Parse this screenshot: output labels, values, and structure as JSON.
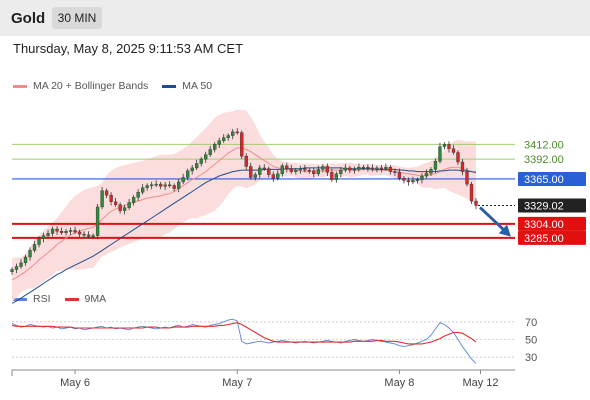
{
  "header": {
    "symbol": "Gold",
    "timeframe": "30 MIN"
  },
  "datetime": "Thursday, May 8, 2025 9:11:53 AM CET",
  "legend": [
    {
      "label": "MA 20 + Bollinger Bands",
      "color": "#f08c8c"
    },
    {
      "label": "MA 50",
      "color": "#1f4e8c"
    }
  ],
  "rsi_legend": [
    {
      "label": "RSI",
      "color": "#5b86d6"
    },
    {
      "label": "9MA",
      "color": "#e03030"
    }
  ],
  "chart_data": [
    {
      "type": "candlestick",
      "title": "",
      "ylim": [
        3225,
        3475
      ],
      "levels": [
        {
          "value": 3412.0,
          "label": "3412.00",
          "kind": "resistance",
          "color": "#9fce6e"
        },
        {
          "value": 3392.0,
          "label": "3392.00",
          "kind": "resistance",
          "color": "#9fce6e"
        },
        {
          "value": 3365.0,
          "label": "3365.00",
          "kind": "pivot",
          "color": "#2a5fd8"
        },
        {
          "value": 3329.02,
          "label": "3329.02",
          "kind": "last-price",
          "color": "#222222"
        },
        {
          "value": 3304.0,
          "label": "3304.00",
          "kind": "support",
          "color": "#e01010"
        },
        {
          "value": 3285.0,
          "label": "3285.00",
          "kind": "support",
          "color": "#e01010"
        }
      ],
      "forecast_arrow": {
        "from": 3329,
        "to": 3285,
        "color": "#2a5fa8"
      },
      "close": [
        3242,
        3246,
        3251,
        3259,
        3268,
        3276,
        3284,
        3288,
        3291,
        3297,
        3294,
        3292,
        3294,
        3295,
        3293,
        3290,
        3289,
        3287,
        3288,
        3327,
        3349,
        3343,
        3334,
        3330,
        3322,
        3326,
        3333,
        3340,
        3347,
        3353,
        3356,
        3357,
        3358,
        3355,
        3357,
        3356,
        3352,
        3361,
        3367,
        3376,
        3380,
        3386,
        3392,
        3398,
        3405,
        3412,
        3417,
        3421,
        3424,
        3429,
        3428,
        3396,
        3382,
        3367,
        3371,
        3380,
        3379,
        3371,
        3366,
        3372,
        3383,
        3379,
        3375,
        3377,
        3379,
        3377,
        3376,
        3372,
        3378,
        3382,
        3374,
        3364,
        3372,
        3377,
        3380,
        3377,
        3378,
        3381,
        3381,
        3380,
        3378,
        3380,
        3379,
        3381,
        3375,
        3374,
        3366,
        3363,
        3361,
        3363,
        3364,
        3369,
        3373,
        3378,
        3389,
        3409,
        3412,
        3406,
        3401,
        3388,
        3375,
        3358,
        3335,
        3329
      ],
      "ma20": [
        3228,
        3231,
        3235,
        3239,
        3244,
        3249,
        3255,
        3260,
        3265,
        3270,
        3276,
        3280,
        3285,
        3289,
        3292,
        3294,
        3296,
        3298,
        3299,
        3304,
        3310,
        3316,
        3321,
        3324,
        3327,
        3329,
        3331,
        3333,
        3335,
        3337,
        3339,
        3340,
        3341,
        3342,
        3344,
        3345,
        3348,
        3352,
        3356,
        3360,
        3364,
        3367,
        3371,
        3375,
        3380,
        3385,
        3390,
        3395,
        3400,
        3404,
        3407,
        3407,
        3405,
        3402,
        3398,
        3394,
        3390,
        3386,
        3382,
        3380,
        3379,
        3378,
        3378,
        3377,
        3376,
        3375,
        3375,
        3376,
        3376,
        3376,
        3377,
        3377,
        3377,
        3377,
        3378,
        3377,
        3377,
        3377,
        3378,
        3378,
        3377,
        3377,
        3377,
        3377,
        3376,
        3375,
        3374,
        3373,
        3372,
        3371,
        3370,
        3369,
        3370,
        3371,
        3372,
        3375,
        3378,
        3380,
        3381,
        3381,
        3379,
        3377,
        3375,
        3373
      ],
      "ma50": [
        3196,
        3199,
        3203,
        3207,
        3211,
        3215,
        3219,
        3223,
        3227,
        3231,
        3235,
        3238,
        3242,
        3245,
        3248,
        3251,
        3254,
        3257,
        3260,
        3264,
        3268,
        3272,
        3276,
        3280,
        3284,
        3288,
        3292,
        3296,
        3300,
        3304,
        3308,
        3312,
        3316,
        3320,
        3324,
        3328,
        3332,
        3336,
        3340,
        3344,
        3348,
        3352,
        3356,
        3360,
        3363,
        3366,
        3369,
        3371,
        3373,
        3375,
        3376,
        3377,
        3377,
        3377,
        3377,
        3377,
        3378,
        3378,
        3378,
        3378,
        3378,
        3379,
        3379,
        3379,
        3379,
        3380,
        3380,
        3380,
        3380,
        3380,
        3380,
        3380,
        3380,
        3380,
        3379,
        3379,
        3379,
        3379,
        3379,
        3379,
        3379,
        3378,
        3378,
        3378,
        3378,
        3378,
        3377,
        3377,
        3376,
        3376,
        3375,
        3375,
        3375,
        3375,
        3375,
        3376,
        3376,
        3377,
        3377,
        3377,
        3376,
        3376,
        3375,
        3374
      ],
      "bb_upper": [
        3258,
        3258,
        3259,
        3263,
        3272,
        3281,
        3289,
        3295,
        3300,
        3306,
        3312,
        3320,
        3328,
        3336,
        3342,
        3346,
        3350,
        3352,
        3354,
        3356,
        3360,
        3370,
        3376,
        3380,
        3382,
        3384,
        3385,
        3387,
        3388,
        3390,
        3392,
        3394,
        3396,
        3398,
        3398,
        3398,
        3399,
        3402,
        3406,
        3410,
        3416,
        3422,
        3428,
        3434,
        3441,
        3448,
        3452,
        3455,
        3456,
        3457,
        3459,
        3459,
        3458,
        3449,
        3439,
        3425,
        3416,
        3408,
        3398,
        3392,
        3389,
        3388,
        3387,
        3387,
        3386,
        3386,
        3386,
        3385,
        3385,
        3385,
        3385,
        3386,
        3386,
        3386,
        3387,
        3387,
        3386,
        3385,
        3385,
        3385,
        3385,
        3384,
        3384,
        3384,
        3384,
        3384,
        3382,
        3381,
        3380,
        3381,
        3382,
        3385,
        3387,
        3389,
        3393,
        3398,
        3403,
        3411,
        3416,
        3418,
        3417,
        3416,
        3416,
        3416
      ],
      "bb_lower": [
        3198,
        3204,
        3211,
        3215,
        3216,
        3217,
        3221,
        3225,
        3230,
        3234,
        3240,
        3240,
        3242,
        3242,
        3242,
        3242,
        3242,
        3244,
        3244,
        3252,
        3260,
        3262,
        3266,
        3268,
        3272,
        3274,
        3277,
        3279,
        3282,
        3284,
        3286,
        3286,
        3286,
        3286,
        3290,
        3292,
        3297,
        3302,
        3306,
        3310,
        3312,
        3312,
        3314,
        3316,
        3319,
        3322,
        3328,
        3335,
        3344,
        3351,
        3355,
        3355,
        3352,
        3355,
        3357,
        3363,
        3364,
        3364,
        3366,
        3368,
        3369,
        3368,
        3369,
        3367,
        3366,
        3364,
        3364,
        3367,
        3367,
        3367,
        3369,
        3368,
        3368,
        3368,
        3369,
        3367,
        3368,
        3369,
        3371,
        3371,
        3369,
        3370,
        3370,
        3370,
        3368,
        3366,
        3366,
        3365,
        3364,
        3361,
        3358,
        3353,
        3353,
        3353,
        3351,
        3352,
        3353,
        3349,
        3346,
        3344,
        3341,
        3338,
        3334,
        3330
      ]
    },
    {
      "type": "line",
      "title": "",
      "ylim": [
        20,
        80
      ],
      "yticks": [
        70,
        50,
        30
      ],
      "series": [
        {
          "name": "RSI",
          "color": "#5b86d6",
          "values": [
            68,
            66,
            64,
            65,
            67,
            66,
            65,
            64,
            65,
            63,
            64,
            62,
            63,
            64,
            62,
            63,
            61,
            62,
            63,
            64,
            65,
            63,
            64,
            62,
            63,
            62,
            61,
            63,
            64,
            65,
            64,
            63,
            62,
            63,
            64,
            63,
            65,
            66,
            64,
            65,
            67,
            66,
            65,
            64,
            66,
            67,
            68,
            70,
            72,
            73,
            71,
            48,
            45,
            46,
            47,
            48,
            47,
            46,
            47,
            48,
            49,
            48,
            47,
            46,
            47,
            48,
            47,
            46,
            47,
            48,
            49,
            48,
            47,
            46,
            48,
            49,
            50,
            49,
            48,
            49,
            50,
            49,
            48,
            47,
            46,
            45,
            43,
            42,
            43,
            44,
            46,
            48,
            50,
            55,
            62,
            69,
            67,
            63,
            58,
            50,
            42,
            35,
            28,
            23
          ]
        },
        {
          "name": "9MA",
          "color": "#e03030",
          "values": [
            66,
            65,
            65,
            65,
            65,
            65,
            65,
            65,
            65,
            65,
            64,
            64,
            64,
            64,
            63,
            63,
            63,
            63,
            63,
            63,
            63,
            63,
            63,
            63,
            63,
            63,
            63,
            63,
            63,
            63,
            64,
            64,
            64,
            63,
            63,
            63,
            64,
            64,
            64,
            64,
            65,
            65,
            65,
            65,
            65,
            65,
            66,
            66,
            67,
            68,
            69,
            67,
            64,
            61,
            58,
            55,
            52,
            50,
            48,
            47,
            47,
            47,
            47,
            47,
            47,
            47,
            47,
            47,
            47,
            47,
            47,
            47,
            47,
            47,
            47,
            47,
            48,
            48,
            48,
            48,
            48,
            49,
            49,
            48,
            48,
            48,
            47,
            46,
            45,
            45,
            45,
            45,
            46,
            47,
            49,
            51,
            54,
            56,
            58,
            58,
            57,
            54,
            51,
            47
          ]
        }
      ]
    }
  ],
  "x_axis": {
    "labels": [
      {
        "label": "May 6",
        "index": 14
      },
      {
        "label": "May 7",
        "index": 50
      },
      {
        "label": "May 8",
        "index": 86
      },
      {
        "label": "May 12",
        "index": 104
      }
    ]
  }
}
